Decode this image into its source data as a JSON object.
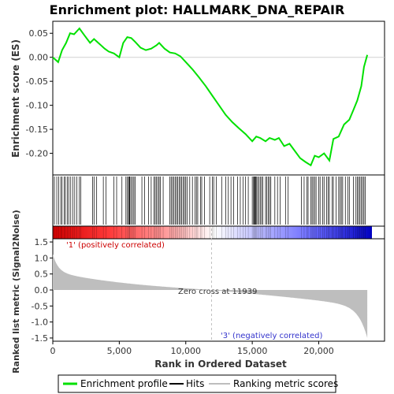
{
  "chart_data": {
    "type": "line",
    "title": "Enrichment plot: HALLMARK_DNA_REPAIR",
    "xlabel": "Rank in Ordered Dataset",
    "ylabel_top": "Enrichment score (ES)",
    "ylabel_bottom": "Ranked list metric (Signal2Noise)",
    "xlim": [
      0,
      24000
    ],
    "ylim_top": [
      -0.245,
      0.075
    ],
    "ylim_bottom": [
      -1.6,
      1.6
    ],
    "x_ticks": [
      0,
      5000,
      10000,
      15000,
      20000
    ],
    "x_tick_labels": [
      "0",
      "5,000",
      "10,000",
      "15,000",
      "20,000"
    ],
    "y_ticks_top": [
      0.05,
      0.0,
      -0.05,
      -0.1,
      -0.15,
      -0.2
    ],
    "y_tick_labels_top": [
      "0.05",
      "0.00",
      "-0.05",
      "-0.10",
      "-0.15",
      "-0.20"
    ],
    "y_ticks_bottom": [
      1.5,
      1.0,
      0.5,
      0.0,
      -0.5,
      -1.0,
      -1.5
    ],
    "y_tick_labels_bottom": [
      "1.5",
      "1.0",
      "0.5",
      "0.0",
      "-0.5",
      "-1.0",
      "-1.5"
    ],
    "annotations": {
      "positive": "'1' (positively correlated)",
      "negative": "'3' (negatively correlated)",
      "zero_cross": "Zero cross at 11939"
    },
    "zero_cross_rank": 11939,
    "total_ranks": 23650,
    "colors": {
      "es_line": "#00e000",
      "hits": "#000000",
      "metric_fill": "#bebebe",
      "positive_text": "#cc0000",
      "negative_text": "#3333cc",
      "zero_line": "#c0c0c0"
    },
    "es_profile": {
      "x": [
        0,
        400,
        700,
        1000,
        1300,
        1600,
        2000,
        2400,
        2800,
        3100,
        3500,
        3900,
        4200,
        4600,
        5000,
        5300,
        5600,
        5900,
        6200,
        6600,
        7000,
        7400,
        7800,
        8000,
        8400,
        8800,
        9200,
        9600,
        10000,
        10500,
        11000,
        11500,
        12000,
        12500,
        13000,
        13500,
        14000,
        14500,
        15000,
        15300,
        15600,
        16000,
        16300,
        16700,
        17000,
        17400,
        17800,
        18200,
        18600,
        19000,
        19400,
        19700,
        20000,
        20400,
        20800,
        21100,
        21500,
        21900,
        22300,
        22600,
        22900,
        23200,
        23400,
        23650
      ],
      "y": [
        0.0,
        -0.01,
        0.015,
        0.03,
        0.05,
        0.048,
        0.06,
        0.045,
        0.03,
        0.038,
        0.028,
        0.018,
        0.012,
        0.008,
        0.0,
        0.03,
        0.042,
        0.04,
        0.032,
        0.02,
        0.015,
        0.018,
        0.025,
        0.03,
        0.018,
        0.01,
        0.008,
        0.002,
        -0.01,
        -0.025,
        -0.042,
        -0.06,
        -0.08,
        -0.1,
        -0.12,
        -0.135,
        -0.148,
        -0.16,
        -0.175,
        -0.165,
        -0.168,
        -0.175,
        -0.168,
        -0.172,
        -0.168,
        -0.185,
        -0.18,
        -0.195,
        -0.21,
        -0.218,
        -0.225,
        -0.205,
        -0.208,
        -0.2,
        -0.215,
        -0.17,
        -0.165,
        -0.14,
        -0.13,
        -0.11,
        -0.09,
        -0.06,
        -0.02,
        0.005
      ]
    },
    "hits": [
      120,
      300,
      450,
      600,
      700,
      850,
      950,
      1100,
      1200,
      1350,
      1500,
      1650,
      1800,
      2000,
      2100,
      3000,
      3100,
      3300,
      3800,
      4000,
      4600,
      4800,
      5200,
      5500,
      5600,
      5700,
      5750,
      5800,
      5900,
      6000,
      6100,
      6200,
      6700,
      6900,
      7200,
      7400,
      7600,
      7700,
      7800,
      7900,
      8000,
      8100,
      8300,
      8800,
      8900,
      9000,
      9100,
      9200,
      9300,
      9400,
      9500,
      9600,
      9700,
      9800,
      9900,
      10000,
      10100,
      10300,
      10500,
      10700,
      10800,
      10900,
      11100,
      11200,
      11400,
      11800,
      12000,
      12100,
      12300,
      12700,
      13000,
      13200,
      13400,
      13600,
      13900,
      14100,
      14300,
      14500,
      14700,
      15000,
      15100,
      15150,
      15200,
      15250,
      15300,
      15400,
      15500,
      15600,
      15700,
      15800,
      16000,
      16100,
      16200,
      16300,
      16400,
      16700,
      16900,
      17100,
      17500,
      17700,
      18700,
      18900,
      19100,
      19200,
      19400,
      19500,
      19600,
      19700,
      19800,
      20000,
      20100,
      20300,
      20400,
      20600,
      20700,
      20800,
      21000,
      21100,
      21300,
      21500,
      21600,
      21700,
      21800,
      22000,
      22200,
      22300,
      22600,
      22800,
      22900,
      23000,
      23100,
      23200,
      23300,
      23400,
      23500
    ]
  },
  "legend": {
    "items": [
      {
        "label": "Enrichment profile",
        "color": "#00e000"
      },
      {
        "label": "Hits",
        "color": "#000000"
      },
      {
        "label": "Ranking metric scores",
        "color": "#bebebe"
      }
    ]
  }
}
